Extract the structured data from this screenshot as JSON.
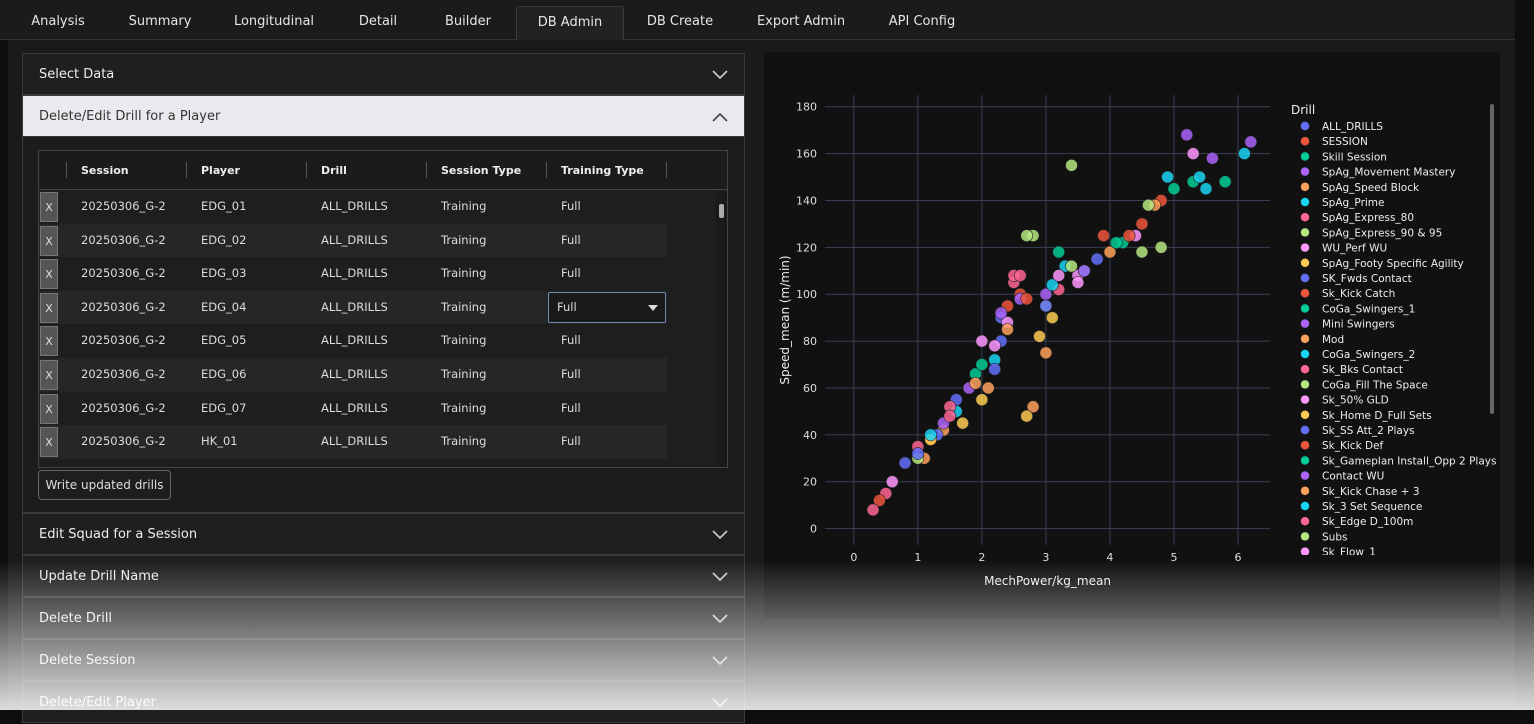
{
  "tabs": [
    "Analysis",
    "Summary",
    "Longitudinal",
    "Detail",
    "Builder",
    "DB Admin",
    "DB Create",
    "Export Admin",
    "API Config"
  ],
  "active_tab": "DB Admin",
  "sections": [
    "Select Data",
    "Delete/Edit Drill for a Player",
    "Edit Squad for a Session",
    "Update Drill Name",
    "Delete Drill",
    "Delete Session",
    "Delete/Edit Player"
  ],
  "table": {
    "delete_label": "X",
    "columns": [
      "Session",
      "Player",
      "Drill",
      "Session Type",
      "Training Type"
    ],
    "rows": [
      [
        "20250306_G-2",
        "EDG_01",
        "ALL_DRILLS",
        "Training",
        "Full"
      ],
      [
        "20250306_G-2",
        "EDG_02",
        "ALL_DRILLS",
        "Training",
        "Full"
      ],
      [
        "20250306_G-2",
        "EDG_03",
        "ALL_DRILLS",
        "Training",
        "Full"
      ],
      [
        "20250306_G-2",
        "EDG_04",
        "ALL_DRILLS",
        "Training",
        "Full"
      ],
      [
        "20250306_G-2",
        "EDG_05",
        "ALL_DRILLS",
        "Training",
        "Full"
      ],
      [
        "20250306_G-2",
        "EDG_06",
        "ALL_DRILLS",
        "Training",
        "Full"
      ],
      [
        "20250306_G-2",
        "EDG_07",
        "ALL_DRILLS",
        "Training",
        "Full"
      ],
      [
        "20250306_G-2",
        "HK_01",
        "ALL_DRILLS",
        "Training",
        "Full"
      ]
    ]
  },
  "button": "Write updated drills",
  "chart_data": {
    "type": "scatter",
    "x_label": "MechPower/kg_mean",
    "y_label": "Speed_mean (m/min)",
    "legend_title": "Drill",
    "xlim": [
      -0.45,
      6.5
    ],
    "ylim": [
      -7,
      185
    ],
    "xticks": [
      0,
      1,
      2,
      3,
      4,
      5,
      6
    ],
    "yticks": [
      0,
      20,
      40,
      60,
      80,
      100,
      120,
      140,
      160,
      180
    ],
    "grid": true,
    "series": [
      {
        "name": "ALL_DRILLS",
        "color": "#636efa",
        "x": [
          0.8,
          1.6,
          2.3
        ],
        "values": [
          28,
          55,
          80
        ]
      },
      {
        "name": "SESSION",
        "color": "#EF553B",
        "x": [
          1.2,
          2.6,
          4.5
        ],
        "values": [
          38,
          100,
          130
        ]
      },
      {
        "name": "Skill Session",
        "color": "#00cc96",
        "x": [
          1.9,
          3.2,
          5.8
        ],
        "values": [
          66,
          118,
          148
        ]
      },
      {
        "name": "SpAg_Movement Mastery",
        "color": "#ab63fa",
        "x": [
          5.2,
          5.6,
          6.2
        ],
        "values": [
          168,
          158,
          165
        ]
      },
      {
        "name": "SpAg_Speed Block",
        "color": "#FFA15A",
        "x": [
          2.8,
          3.0,
          1.4
        ],
        "values": [
          52,
          75,
          42
        ]
      },
      {
        "name": "SpAg_Prime",
        "color": "#19d3f3",
        "x": [
          6.1,
          5.5,
          2.2
        ],
        "values": [
          160,
          145,
          72
        ]
      },
      {
        "name": "SpAg_Express_80",
        "color": "#FF6692",
        "x": [
          2.5,
          0.5,
          1.0
        ],
        "values": [
          105,
          15,
          35
        ]
      },
      {
        "name": "SpAg_Express_90 & 95",
        "color": "#B6E880",
        "x": [
          3.4,
          4.8,
          2.8
        ],
        "values": [
          155,
          120,
          125
        ]
      },
      {
        "name": "WU_Perf WU",
        "color": "#FF97FF",
        "x": [
          4.4,
          2.0,
          3.5
        ],
        "values": [
          125,
          80,
          108
        ]
      },
      {
        "name": "SpAg_Footy Specific Agility",
        "color": "#FECB52",
        "x": [
          2.7,
          3.1,
          1.7
        ],
        "values": [
          48,
          90,
          45
        ]
      },
      {
        "name": "SK_Fwds Contact",
        "color": "#636efa",
        "x": [
          3.8,
          2.3,
          1.3
        ],
        "values": [
          115,
          90,
          40
        ]
      },
      {
        "name": "Sk_Kick Catch",
        "color": "#EF553B",
        "x": [
          4.8,
          3.9,
          2.4
        ],
        "values": [
          140,
          125,
          95
        ]
      },
      {
        "name": "CoGa_Swingers_1",
        "color": "#00cc96",
        "x": [
          5.0,
          3.6,
          4.2
        ],
        "values": [
          145,
          110,
          122
        ]
      },
      {
        "name": "Mini Swingers",
        "color": "#ab63fa",
        "x": [
          2.6,
          3.0,
          1.8
        ],
        "values": [
          98,
          100,
          60
        ]
      },
      {
        "name": "Mod",
        "color": "#FFA15A",
        "x": [
          2.1,
          4.0,
          1.1
        ],
        "values": [
          60,
          118,
          30
        ]
      },
      {
        "name": "CoGa_Swingers_2",
        "color": "#19d3f3",
        "x": [
          4.9,
          3.3,
          1.6
        ],
        "values": [
          150,
          112,
          50
        ]
      },
      {
        "name": "Sk_Bks Contact",
        "color": "#FF6692",
        "x": [
          2.5,
          3.2,
          1.5
        ],
        "values": [
          108,
          102,
          52
        ]
      },
      {
        "name": "CoGa_Fill The Space",
        "color": "#B6E880",
        "x": [
          3.0,
          4.5,
          1.0
        ],
        "values": [
          95,
          118,
          30
        ]
      },
      {
        "name": "Sk_50% GLD",
        "color": "#FF97FF",
        "x": [
          2.4,
          3.5,
          0.6
        ],
        "values": [
          88,
          105,
          20
        ]
      },
      {
        "name": "Sk_Home D_Full Sets",
        "color": "#FECB52",
        "x": [
          2.9,
          1.2,
          2.0
        ],
        "values": [
          82,
          38,
          55
        ]
      },
      {
        "name": "Sk_SS Att_2 Plays",
        "color": "#636efa",
        "x": [
          3.0,
          2.2,
          1.0
        ],
        "values": [
          95,
          68,
          32
        ]
      },
      {
        "name": "Sk_Kick Def",
        "color": "#EF553B",
        "x": [
          2.7,
          4.3,
          0.4
        ],
        "values": [
          98,
          125,
          12
        ]
      },
      {
        "name": "Sk_Gameplan Install_Opp 2 Plays",
        "color": "#00cc96",
        "x": [
          4.1,
          5.3,
          2.0
        ],
        "values": [
          122,
          148,
          70
        ]
      },
      {
        "name": "Contact WU",
        "color": "#ab63fa",
        "x": [
          2.3,
          1.4,
          3.6
        ],
        "values": [
          92,
          45,
          110
        ]
      },
      {
        "name": "Sk_Kick Chase + 3",
        "color": "#FFA15A",
        "x": [
          4.7,
          2.4,
          1.9
        ],
        "values": [
          138,
          85,
          62
        ]
      },
      {
        "name": "Sk_3 Set Sequence",
        "color": "#19d3f3",
        "x": [
          5.4,
          3.1,
          1.2
        ],
        "values": [
          150,
          104,
          40
        ]
      },
      {
        "name": "Sk_Edge D_100m",
        "color": "#FF6692",
        "x": [
          2.6,
          0.3,
          1.5
        ],
        "values": [
          108,
          8,
          48
        ]
      },
      {
        "name": "Subs",
        "color": "#B6E880",
        "x": [
          2.7,
          3.4,
          4.6
        ],
        "values": [
          125,
          112,
          138
        ]
      },
      {
        "name": "Sk_Flow_1",
        "color": "#FF97FF",
        "x": [
          5.3,
          3.2,
          2.2
        ],
        "values": [
          160,
          108,
          78
        ]
      }
    ]
  }
}
